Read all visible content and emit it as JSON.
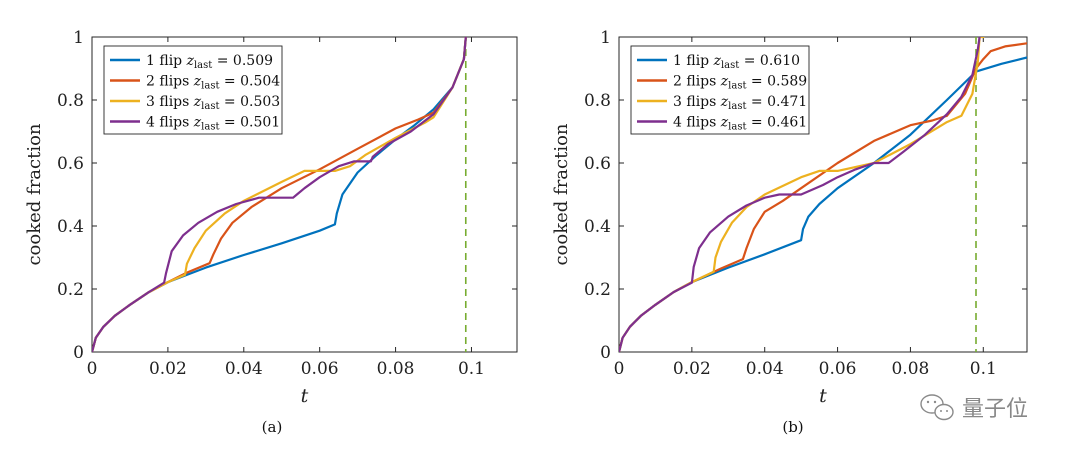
{
  "chart_data": [
    {
      "type": "line",
      "caption": "(a)",
      "xlabel": "t",
      "ylabel": "cooked fraction",
      "xlim": [
        0,
        0.112
      ],
      "ylim": [
        0,
        1
      ],
      "xticks": [
        0,
        0.02,
        0.04,
        0.06,
        0.08,
        0.1
      ],
      "xtick_labels": [
        "0",
        "0.02",
        "0.04",
        "0.06",
        "0.08",
        "0.1"
      ],
      "yticks": [
        0,
        0.2,
        0.4,
        0.6,
        0.8,
        1
      ],
      "ytick_labels": [
        "0",
        "0.2",
        "0.4",
        "0.6",
        "0.8",
        "1"
      ],
      "vline": {
        "x": 0.0985,
        "color": "#77AC30",
        "style": "dashed"
      },
      "legend_position": "top-left",
      "series": [
        {
          "name": "1 flip",
          "z_label": "z",
          "z_sub": "last",
          "z_value": "= 0.509",
          "color": "#0072BD",
          "x": [
            0,
            0.001,
            0.003,
            0.006,
            0.01,
            0.015,
            0.02,
            0.03,
            0.04,
            0.05,
            0.06,
            0.064,
            0.0645,
            0.066,
            0.07,
            0.075,
            0.08,
            0.085,
            0.09,
            0.095,
            0.098,
            0.0985
          ],
          "y": [
            0,
            0.045,
            0.08,
            0.115,
            0.15,
            0.19,
            0.222,
            0.268,
            0.308,
            0.345,
            0.385,
            0.405,
            0.44,
            0.5,
            0.57,
            0.625,
            0.675,
            0.72,
            0.77,
            0.84,
            0.93,
            1.0
          ]
        },
        {
          "name": "2 flips",
          "z_label": "z",
          "z_sub": "last",
          "z_value": "= 0.504",
          "color": "#D95319",
          "x": [
            0,
            0.001,
            0.003,
            0.006,
            0.01,
            0.015,
            0.02,
            0.025,
            0.031,
            0.032,
            0.034,
            0.037,
            0.042,
            0.05,
            0.06,
            0.07,
            0.08,
            0.086,
            0.09,
            0.095,
            0.098,
            0.0985
          ],
          "y": [
            0,
            0.045,
            0.08,
            0.115,
            0.15,
            0.19,
            0.222,
            0.252,
            0.282,
            0.31,
            0.36,
            0.41,
            0.46,
            0.52,
            0.58,
            0.645,
            0.71,
            0.738,
            0.76,
            0.84,
            0.93,
            1.0
          ]
        },
        {
          "name": "3 flips",
          "z_label": "z",
          "z_sub": "last",
          "z_value": "= 0.503",
          "color": "#EDB120",
          "x": [
            0,
            0.001,
            0.003,
            0.006,
            0.01,
            0.015,
            0.02,
            0.0245,
            0.025,
            0.027,
            0.03,
            0.035,
            0.04,
            0.05,
            0.056,
            0.064,
            0.068,
            0.072,
            0.08,
            0.088,
            0.09,
            0.095,
            0.098,
            0.0985
          ],
          "y": [
            0,
            0.045,
            0.08,
            0.115,
            0.15,
            0.19,
            0.222,
            0.245,
            0.28,
            0.33,
            0.385,
            0.44,
            0.48,
            0.54,
            0.575,
            0.575,
            0.59,
            0.625,
            0.68,
            0.73,
            0.745,
            0.84,
            0.93,
            1.0
          ]
        },
        {
          "name": "4 flips",
          "z_label": "z",
          "z_sub": "last",
          "z_value": "= 0.501",
          "color": "#7E2F8E",
          "x": [
            0,
            0.001,
            0.003,
            0.006,
            0.01,
            0.015,
            0.019,
            0.0195,
            0.021,
            0.024,
            0.028,
            0.033,
            0.038,
            0.044,
            0.053,
            0.054,
            0.056,
            0.06,
            0.065,
            0.069,
            0.0735,
            0.074,
            0.078,
            0.084,
            0.09,
            0.095,
            0.098,
            0.0985
          ],
          "y": [
            0,
            0.045,
            0.08,
            0.115,
            0.15,
            0.19,
            0.22,
            0.25,
            0.32,
            0.37,
            0.41,
            0.445,
            0.47,
            0.49,
            0.49,
            0.5,
            0.52,
            0.555,
            0.59,
            0.605,
            0.605,
            0.62,
            0.66,
            0.7,
            0.755,
            0.84,
            0.93,
            1.0
          ]
        }
      ]
    },
    {
      "type": "line",
      "caption": "(b)",
      "xlabel": "t",
      "ylabel": "cooked fraction",
      "xlim": [
        0,
        0.112
      ],
      "ylim": [
        0,
        1
      ],
      "xticks": [
        0,
        0.02,
        0.04,
        0.06,
        0.08,
        0.1
      ],
      "xtick_labels": [
        "0",
        "0.02",
        "0.04",
        "0.06",
        "0.08",
        "0.1"
      ],
      "yticks": [
        0,
        0.2,
        0.4,
        0.6,
        0.8,
        1
      ],
      "ytick_labels": [
        "0",
        "0.2",
        "0.4",
        "0.6",
        "0.8",
        "1"
      ],
      "vline": {
        "x": 0.098,
        "color": "#77AC30",
        "style": "dashed"
      },
      "legend_position": "top-left",
      "series": [
        {
          "name": "1 flip",
          "z_label": "z",
          "z_sub": "last",
          "z_value": "= 0.610",
          "color": "#0072BD",
          "x": [
            0,
            0.001,
            0.003,
            0.006,
            0.01,
            0.015,
            0.02,
            0.03,
            0.04,
            0.05,
            0.0505,
            0.052,
            0.055,
            0.06,
            0.07,
            0.08,
            0.09,
            0.098,
            0.105,
            0.112
          ],
          "y": [
            0,
            0.045,
            0.08,
            0.115,
            0.15,
            0.19,
            0.222,
            0.268,
            0.31,
            0.355,
            0.39,
            0.43,
            0.47,
            0.52,
            0.6,
            0.69,
            0.8,
            0.89,
            0.915,
            0.935
          ]
        },
        {
          "name": "2 flips",
          "z_label": "z",
          "z_sub": "last",
          "z_value": "= 0.589",
          "color": "#D95319",
          "x": [
            0,
            0.001,
            0.003,
            0.006,
            0.01,
            0.015,
            0.02,
            0.028,
            0.034,
            0.035,
            0.037,
            0.04,
            0.045,
            0.05,
            0.06,
            0.07,
            0.08,
            0.086,
            0.09,
            0.095,
            0.098,
            0.1,
            0.102,
            0.106,
            0.112
          ],
          "y": [
            0,
            0.045,
            0.08,
            0.115,
            0.15,
            0.19,
            0.222,
            0.265,
            0.295,
            0.33,
            0.39,
            0.445,
            0.48,
            0.52,
            0.6,
            0.67,
            0.72,
            0.735,
            0.75,
            0.82,
            0.9,
            0.93,
            0.955,
            0.97,
            0.98
          ]
        },
        {
          "name": "3 flips",
          "z_label": "z",
          "z_sub": "last",
          "z_value": "= 0.471",
          "color": "#EDB120",
          "x": [
            0,
            0.001,
            0.003,
            0.006,
            0.01,
            0.015,
            0.02,
            0.026,
            0.0265,
            0.028,
            0.031,
            0.035,
            0.04,
            0.05,
            0.055,
            0.06,
            0.07,
            0.08,
            0.09,
            0.094,
            0.097,
            0.0985,
            0.099,
            0.1
          ],
          "y": [
            0,
            0.045,
            0.08,
            0.115,
            0.15,
            0.19,
            0.222,
            0.255,
            0.3,
            0.35,
            0.41,
            0.46,
            0.5,
            0.555,
            0.575,
            0.575,
            0.6,
            0.66,
            0.73,
            0.75,
            0.82,
            0.92,
            1.0,
            1.0
          ]
        },
        {
          "name": "4 flips",
          "z_label": "z",
          "z_sub": "last",
          "z_value": "= 0.461",
          "color": "#7E2F8E",
          "x": [
            0,
            0.001,
            0.003,
            0.006,
            0.01,
            0.015,
            0.02,
            0.0205,
            0.022,
            0.025,
            0.03,
            0.035,
            0.04,
            0.044,
            0.05,
            0.056,
            0.06,
            0.065,
            0.07,
            0.074,
            0.078,
            0.084,
            0.09,
            0.094,
            0.097,
            0.0985,
            0.099
          ],
          "y": [
            0,
            0.045,
            0.08,
            0.115,
            0.15,
            0.19,
            0.22,
            0.27,
            0.33,
            0.38,
            0.43,
            0.465,
            0.49,
            0.5,
            0.5,
            0.53,
            0.555,
            0.58,
            0.6,
            0.6,
            0.635,
            0.69,
            0.755,
            0.81,
            0.88,
            0.96,
            1.0
          ]
        }
      ]
    }
  ],
  "watermark": {
    "text": "量子位",
    "icon": "wechat-icon"
  }
}
